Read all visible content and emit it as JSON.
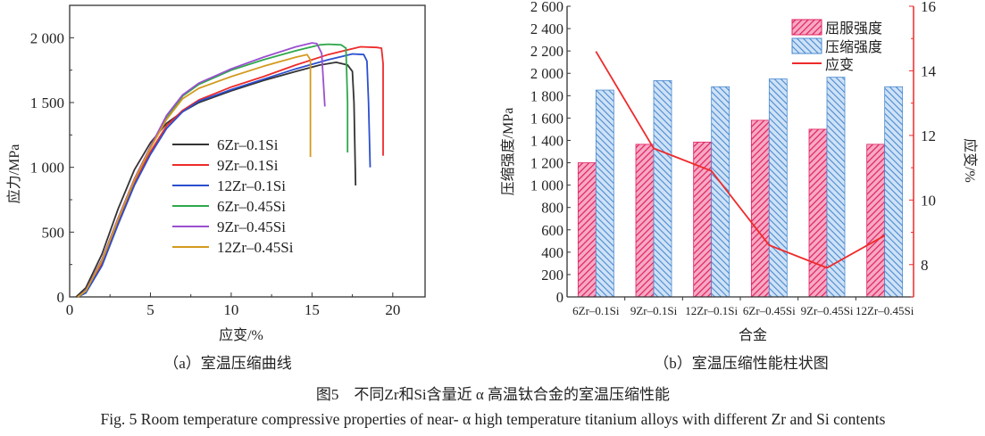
{
  "chart_data": [
    {
      "type": "line",
      "panel": "a",
      "xlabel": "应变/%",
      "ylabel": "应力/MPa",
      "xlim": [
        0,
        22
      ],
      "ylim": [
        0,
        2250
      ],
      "xticks": [
        0,
        5,
        10,
        15,
        20
      ],
      "yticks": [
        0,
        500,
        1000,
        1500,
        2000
      ],
      "ytick_labels": [
        "0",
        "500",
        "1 000",
        "1 500",
        "2 000"
      ],
      "grid": false,
      "legend_position": "center",
      "series": [
        {
          "name": "6Zr–0.1Si",
          "color": "#333333",
          "points": [
            [
              0.4,
              0
            ],
            [
              1,
              70
            ],
            [
              2,
              330
            ],
            [
              3,
              680
            ],
            [
              4,
              980
            ],
            [
              5,
              1190
            ],
            [
              6,
              1340
            ],
            [
              7,
              1430
            ],
            [
              8,
              1500
            ],
            [
              10,
              1590
            ],
            [
              12,
              1670
            ],
            [
              14,
              1740
            ],
            [
              15.5,
              1790
            ],
            [
              16.5,
              1810
            ],
            [
              17.2,
              1790
            ],
            [
              17.5,
              1740
            ],
            [
              17.6,
              1500
            ],
            [
              17.7,
              860
            ]
          ]
        },
        {
          "name": "9Zr–0.1Si",
          "color": "#ee2a2a",
          "points": [
            [
              0.5,
              0
            ],
            [
              1,
              40
            ],
            [
              2,
              260
            ],
            [
              3,
              580
            ],
            [
              4,
              880
            ],
            [
              5,
              1120
            ],
            [
              6,
              1320
            ],
            [
              7,
              1440
            ],
            [
              8,
              1520
            ],
            [
              10,
              1620
            ],
            [
              12,
              1700
            ],
            [
              14,
              1790
            ],
            [
              16,
              1870
            ],
            [
              18,
              1930
            ],
            [
              19,
              1925
            ],
            [
              19.3,
              1920
            ],
            [
              19.4,
              1800
            ],
            [
              19.4,
              1090
            ]
          ]
        },
        {
          "name": "12Zr–0.1Si",
          "color": "#2b4fd0",
          "points": [
            [
              0.5,
              0
            ],
            [
              1,
              30
            ],
            [
              2,
              240
            ],
            [
              3,
              560
            ],
            [
              4,
              860
            ],
            [
              5,
              1100
            ],
            [
              6,
              1300
            ],
            [
              7,
              1430
            ],
            [
              8,
              1510
            ],
            [
              10,
              1600
            ],
            [
              12,
              1680
            ],
            [
              14,
              1760
            ],
            [
              16,
              1830
            ],
            [
              17.5,
              1875
            ],
            [
              18.2,
              1870
            ],
            [
              18.4,
              1820
            ],
            [
              18.5,
              1500
            ],
            [
              18.6,
              1000
            ]
          ]
        },
        {
          "name": "6Zr–0.45Si",
          "color": "#2fa84a",
          "points": [
            [
              0.5,
              0
            ],
            [
              1,
              50
            ],
            [
              2,
              280
            ],
            [
              3,
              600
            ],
            [
              4,
              900
            ],
            [
              5,
              1150
            ],
            [
              6,
              1380
            ],
            [
              7,
              1550
            ],
            [
              8,
              1640
            ],
            [
              10,
              1750
            ],
            [
              12,
              1830
            ],
            [
              14,
              1900
            ],
            [
              15.5,
              1945
            ],
            [
              16,
              1950
            ],
            [
              16.8,
              1945
            ],
            [
              17.1,
              1920
            ],
            [
              17.2,
              1500
            ],
            [
              17.2,
              1115
            ]
          ]
        },
        {
          "name": "9Zr–0.45Si",
          "color": "#9b4fd0",
          "points": [
            [
              0.5,
              0
            ],
            [
              1,
              50
            ],
            [
              2,
              290
            ],
            [
              3,
              610
            ],
            [
              4,
              910
            ],
            [
              5,
              1160
            ],
            [
              6,
              1400
            ],
            [
              7,
              1560
            ],
            [
              8,
              1650
            ],
            [
              10,
              1760
            ],
            [
              12,
              1850
            ],
            [
              14,
              1930
            ],
            [
              15,
              1960
            ],
            [
              15.3,
              1955
            ],
            [
              15.6,
              1880
            ],
            [
              15.8,
              1470
            ]
          ]
        },
        {
          "name": "12Zr–0.45Si",
          "color": "#d49a1e",
          "points": [
            [
              0.5,
              0
            ],
            [
              1,
              45
            ],
            [
              2,
              280
            ],
            [
              3,
              600
            ],
            [
              4,
              900
            ],
            [
              5,
              1150
            ],
            [
              6,
              1370
            ],
            [
              7,
              1530
            ],
            [
              8,
              1610
            ],
            [
              10,
              1700
            ],
            [
              12,
              1780
            ],
            [
              14,
              1850
            ],
            [
              14.7,
              1870
            ],
            [
              14.9,
              1830
            ],
            [
              14.9,
              1080
            ]
          ]
        }
      ]
    },
    {
      "type": "bar",
      "panel": "b",
      "xlabel": "合金",
      "ylabel": "压缩强度/MPa",
      "y2label": "应变/%",
      "categories": [
        "6Zr–0.1Si",
        "9Zr–0.1Si",
        "12Zr–0.1Si",
        "6Zr–0.45Si",
        "9Zr–0.45Si",
        "12Zr–0.45Si"
      ],
      "ylim": [
        0,
        2600
      ],
      "y2lim": [
        7,
        16
      ],
      "yticks": [
        0,
        200,
        400,
        600,
        800,
        1000,
        1200,
        1400,
        1600,
        1800,
        2000,
        2200,
        2400,
        2600
      ],
      "ytick_labels": [
        "0",
        "200",
        "400",
        "600",
        "800",
        "1 000",
        "1 200",
        "1 400",
        "1 600",
        "1 800",
        "2 000",
        "2 200",
        "2 400",
        "2 600"
      ],
      "y2ticks": [
        8,
        10,
        12,
        14,
        16
      ],
      "legend_position": "top-right",
      "series": [
        {
          "name": "屈服强度",
          "kind": "bar",
          "color": "#e8306e",
          "values": [
            1200,
            1365,
            1385,
            1580,
            1500,
            1365
          ]
        },
        {
          "name": "压缩强度",
          "kind": "bar",
          "color": "#5a9ad8",
          "values": [
            1850,
            1935,
            1880,
            1950,
            1965,
            1880
          ]
        },
        {
          "name": "应变",
          "kind": "line",
          "axis": "right",
          "color": "#ee2a2a",
          "values": [
            14.6,
            11.6,
            10.9,
            8.6,
            7.9,
            8.9
          ]
        }
      ]
    }
  ],
  "captions": {
    "a": "（a）室温压缩曲线",
    "b": "（b）室温压缩性能柱状图",
    "figure_cn": "图5　不同Zr和Si含量近 α 高温钛合金的室温压缩性能",
    "figure_en": "Fig. 5 Room temperature compressive properties of near- α  high temperature titanium alloys with different Zr and Si contents"
  }
}
